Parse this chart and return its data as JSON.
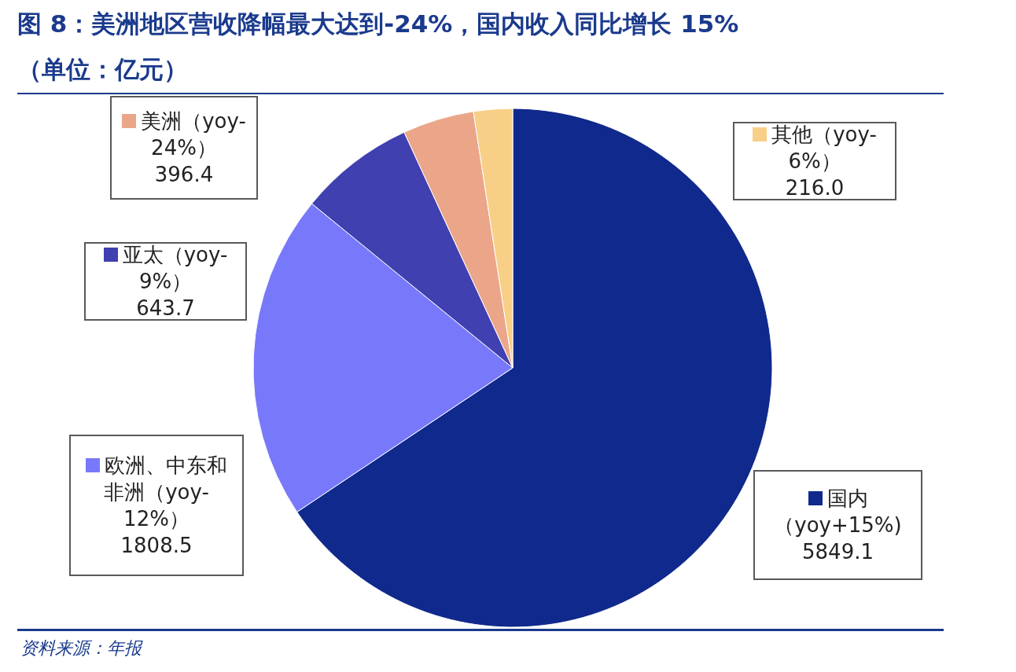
{
  "chart_data": {
    "type": "pie",
    "title": "图 8：美洲地区营收降幅最大达到-24%，国内收入同比增长 15%",
    "subtitle": "（单位：亿元）",
    "categories": [
      "国内（yoy+15%)",
      "欧洲、中东和非洲（yoy-12%）",
      "亚太（yoy-9%）",
      "美洲（yoy-24%）",
      "其他（yoy-6%）"
    ],
    "values": [
      5849.1,
      1808.5,
      643.7,
      396.4,
      216.0
    ],
    "value_labels": [
      "5849.1",
      "1808.5",
      "643.7",
      "396.4",
      "216.0"
    ],
    "colors": [
      "#10298c",
      "#7878fa",
      "#4040b0",
      "#eba68a",
      "#f8cf86"
    ],
    "legend": "left",
    "annotations": [
      "资料来源：年报"
    ]
  }
}
